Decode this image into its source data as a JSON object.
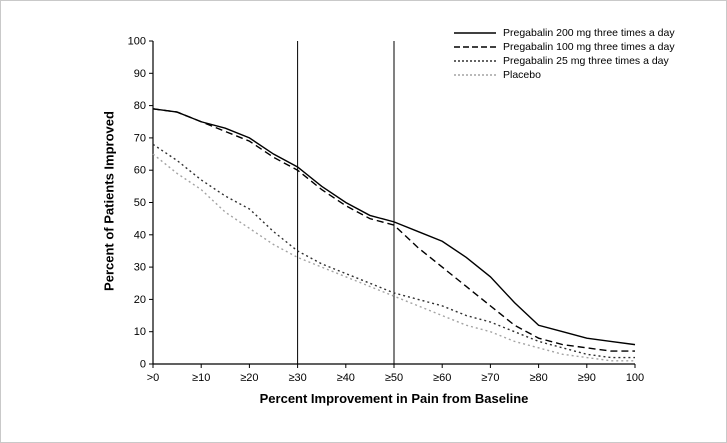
{
  "chart_data": {
    "type": "line",
    "title": "",
    "xlabel": "Percent Improvement in Pain from Baseline",
    "ylabel": "Percent of Patients Improved",
    "xlim": [
      0,
      100
    ],
    "ylim": [
      0,
      100
    ],
    "grid": false,
    "legend_position": "top-right",
    "x_ticks": [
      0,
      10,
      20,
      30,
      40,
      50,
      60,
      70,
      80,
      90,
      100
    ],
    "x_tick_labels": [
      ">0",
      "≥10",
      "≥20",
      "≥30",
      "≥40",
      "≥50",
      "≥60",
      "≥70",
      "≥80",
      "≥90",
      "100"
    ],
    "y_ticks": [
      0,
      10,
      20,
      30,
      40,
      50,
      60,
      70,
      80,
      90,
      100
    ],
    "reference_lines_x": [
      30,
      50
    ],
    "x_values": [
      0,
      5,
      10,
      15,
      20,
      25,
      30,
      35,
      40,
      45,
      50,
      55,
      60,
      65,
      70,
      75,
      80,
      85,
      90,
      95,
      100
    ],
    "series": [
      {
        "name": "Pregabalin 200 mg three times a day",
        "style": "solid",
        "color": "#000000",
        "values": [
          79,
          78,
          75,
          73,
          70,
          65,
          61,
          55,
          50,
          46,
          44,
          41,
          38,
          33,
          27,
          19,
          12,
          10,
          8,
          7,
          6
        ]
      },
      {
        "name": "Pregabalin 100 mg three times a day",
        "style": "dashed",
        "color": "#000000",
        "values": [
          79,
          78,
          75,
          72,
          69,
          64,
          60,
          54,
          49,
          45,
          43,
          36,
          30,
          24,
          18,
          12,
          8,
          6,
          5,
          4,
          4
        ]
      },
      {
        "name": "Pregabalin 25 mg three times a day",
        "style": "dotted",
        "color": "#303030",
        "values": [
          68,
          63,
          57,
          52,
          48,
          41,
          35,
          31,
          28,
          25,
          22,
          20,
          18,
          15,
          13,
          10,
          7,
          5,
          3,
          2,
          2
        ]
      },
      {
        "name": "Placebo",
        "style": "dotted",
        "color": "#a3a3a3",
        "values": [
          65,
          59,
          54,
          47,
          42,
          37,
          33,
          30,
          27,
          24,
          21,
          18,
          15,
          12,
          10,
          7,
          5,
          3,
          2,
          1,
          1
        ]
      }
    ]
  }
}
